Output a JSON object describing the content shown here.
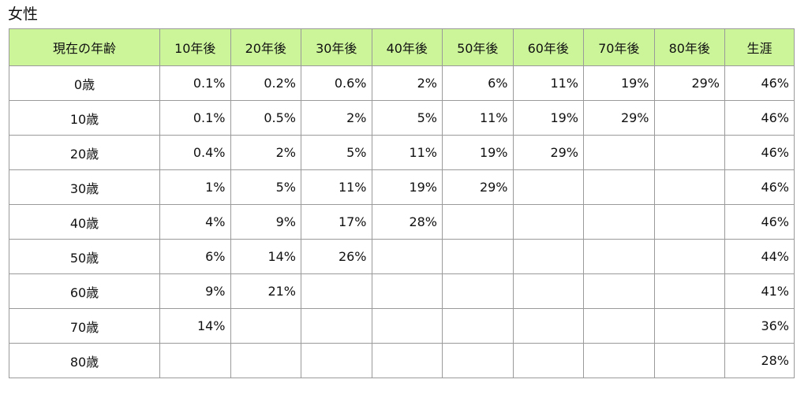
{
  "caption": "女性",
  "table": {
    "headers": [
      "現在の年齢",
      "10年後",
      "20年後",
      "30年後",
      "40年後",
      "50年後",
      "60年後",
      "70年後",
      "80年後",
      "生涯"
    ],
    "rows": [
      {
        "age": "0歳",
        "cells": [
          "0.1%",
          "0.2%",
          "0.6%",
          "2%",
          "6%",
          "11%",
          "19%",
          "29%",
          "46%"
        ]
      },
      {
        "age": "10歳",
        "cells": [
          "0.1%",
          "0.5%",
          "2%",
          "5%",
          "11%",
          "19%",
          "29%",
          "",
          "46%"
        ]
      },
      {
        "age": "20歳",
        "cells": [
          "0.4%",
          "2%",
          "5%",
          "11%",
          "19%",
          "29%",
          "",
          "",
          "46%"
        ]
      },
      {
        "age": "30歳",
        "cells": [
          "1%",
          "5%",
          "11%",
          "19%",
          "29%",
          "",
          "",
          "",
          "46%"
        ]
      },
      {
        "age": "40歳",
        "cells": [
          "4%",
          "9%",
          "17%",
          "28%",
          "",
          "",
          "",
          "",
          "46%"
        ]
      },
      {
        "age": "50歳",
        "cells": [
          "6%",
          "14%",
          "26%",
          "",
          "",
          "",
          "",
          "",
          "44%"
        ]
      },
      {
        "age": "60歳",
        "cells": [
          "9%",
          "21%",
          "",
          "",
          "",
          "",
          "",
          "",
          "41%"
        ]
      },
      {
        "age": "70歳",
        "cells": [
          "14%",
          "",
          "",
          "",
          "",
          "",
          "",
          "",
          "36%"
        ]
      },
      {
        "age": "80歳",
        "cells": [
          "",
          "",
          "",
          "",
          "",
          "",
          "",
          "",
          "28%"
        ]
      }
    ]
  },
  "colors": {
    "header_background": "#ccf59a",
    "border": "#9a9a9a"
  }
}
